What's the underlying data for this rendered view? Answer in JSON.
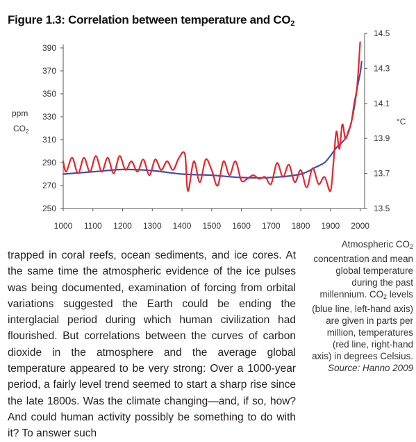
{
  "figure": {
    "title_text": "Figure 1.3: Correlation between temperature and CO",
    "title_sub": "2"
  },
  "chart_data": {
    "type": "line",
    "x_ticks": [
      1000,
      1100,
      1200,
      1300,
      1400,
      1500,
      1600,
      1700,
      1800,
      1900,
      2000
    ],
    "xlim": [
      1000,
      2015
    ],
    "y_left": {
      "label_line1": "ppm",
      "label_line2": "CO",
      "label_sub": "2",
      "ticks": [
        250,
        270,
        290,
        310,
        330,
        350,
        370,
        390
      ],
      "ylim": [
        250,
        393
      ]
    },
    "y_right": {
      "label": "°C",
      "ticks": [
        "13.5",
        "13.7",
        "13.9",
        "14.1",
        "14.3",
        "14.5"
      ],
      "ylim": [
        13.5,
        14.5
      ]
    },
    "grid": false,
    "series": [
      {
        "axis": "left",
        "color": "#3b4fb8",
        "x": [
          1000,
          1100,
          1200,
          1300,
          1400,
          1500,
          1600,
          1700,
          1800,
          1850,
          1880,
          1900,
          1920,
          1940,
          1950,
          1960,
          1970,
          1980,
          1990,
          2000,
          2005
        ],
        "y": [
          280,
          282,
          284,
          283,
          280,
          279,
          277,
          277,
          280,
          286,
          290,
          296,
          303,
          308,
          311,
          316,
          325,
          338,
          355,
          368,
          378
        ]
      },
      {
        "axis": "right",
        "color": "#e8262a",
        "x": [
          1000,
          1010,
          1030,
          1050,
          1070,
          1090,
          1110,
          1130,
          1150,
          1170,
          1190,
          1210,
          1230,
          1250,
          1270,
          1290,
          1310,
          1330,
          1350,
          1370,
          1390,
          1410,
          1420,
          1440,
          1460,
          1480,
          1500,
          1520,
          1540,
          1560,
          1580,
          1600,
          1620,
          1640,
          1660,
          1680,
          1700,
          1720,
          1740,
          1760,
          1780,
          1800,
          1820,
          1840,
          1860,
          1880,
          1900,
          1910,
          1920,
          1930,
          1940,
          1950,
          1960,
          1970,
          1980,
          1990,
          2000
        ],
        "y": [
          13.77,
          13.71,
          13.79,
          13.7,
          13.79,
          13.71,
          13.8,
          13.71,
          13.79,
          13.7,
          13.8,
          13.72,
          13.77,
          13.71,
          13.78,
          13.69,
          13.78,
          13.72,
          13.77,
          13.72,
          13.79,
          13.81,
          13.6,
          13.77,
          13.65,
          13.78,
          13.72,
          13.63,
          13.77,
          13.69,
          13.77,
          13.66,
          13.67,
          13.69,
          13.67,
          13.68,
          13.64,
          13.76,
          13.68,
          13.75,
          13.65,
          13.72,
          13.62,
          13.73,
          13.64,
          13.68,
          13.6,
          13.76,
          13.94,
          13.84,
          13.98,
          13.9,
          13.94,
          13.99,
          14.1,
          14.2,
          14.45
        ]
      }
    ]
  },
  "body": {
    "paragraph": "trapped in coral reefs, ocean sediments, and ice cores. At the same time the atmospheric evidence of the ice pulses was being documented, examination of forcing from orbital variations suggested the Earth could be ending the interglacial period during which human civilization had flourished. But correlations between the curves of carbon dioxide in the atmosphere and the average global temperature appeared to be very strong: Over a 1000-year period, a fairly level trend seemed to start a sharp rise since the late 1800s. Was the climate changing—and, if so, how? And could human activity possibly be something to do with it? To answer such"
  },
  "caption": {
    "part1": "Atmospheric CO",
    "sub1": "2",
    "part2": " concentration and mean global temperature during the past millennium. CO",
    "sub2": "2",
    "part3": " levels (blue line, left-hand axis) are given in parts per million, temperatures (red line, right-hand axis) in degrees Celsius.",
    "source": "Source: Hanno 2009"
  }
}
